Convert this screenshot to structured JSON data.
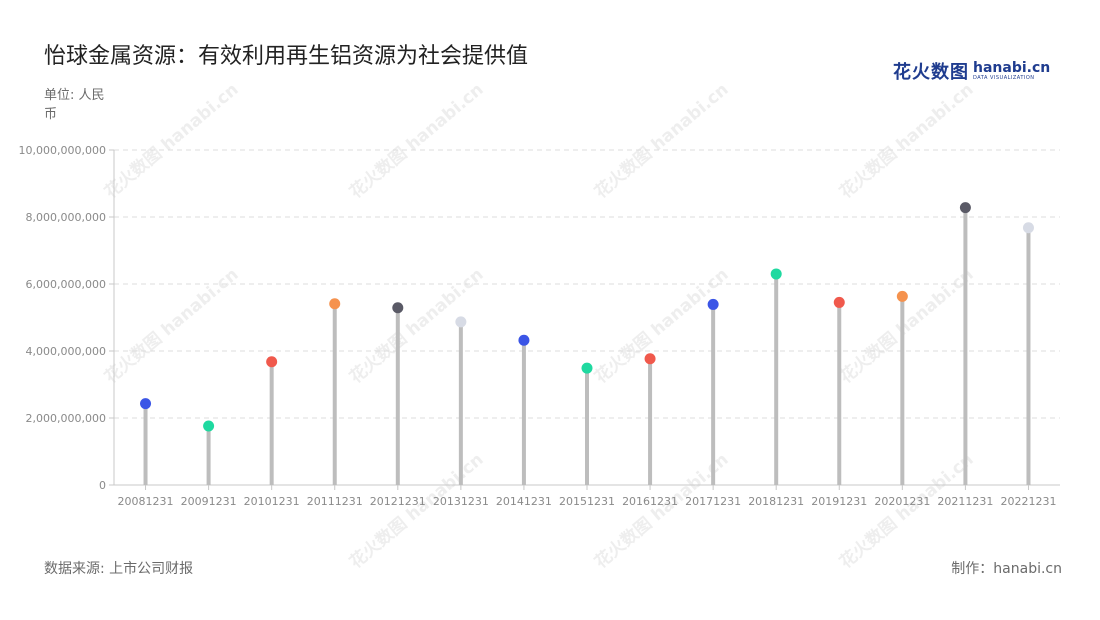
{
  "header": {
    "title": "怡球金属资源：有效利用再生铝资源为社会提供值",
    "unit": "单位: 人民币"
  },
  "logo": {
    "cn": "花火数图",
    "en": "hanabi.cn",
    "sub": "DATA VISUALIZATION"
  },
  "watermark": "花火数图 hanabi.cn",
  "footer": {
    "source": "数据来源: 上市公司财报",
    "credit": "制作：hanabi.cn"
  },
  "chart_data": {
    "type": "lollipop",
    "categories": [
      "20081231",
      "20091231",
      "20101231",
      "20111231",
      "20121231",
      "20131231",
      "20141231",
      "20151231",
      "20161231",
      "20171231",
      "20181231",
      "20191231",
      "20201231",
      "20211231",
      "20221231"
    ],
    "values": [
      2430000000,
      1760000000,
      3680000000,
      5410000000,
      5290000000,
      4870000000,
      4320000000,
      3490000000,
      3770000000,
      5390000000,
      6300000000,
      5450000000,
      5630000000,
      8280000000,
      7680000000
    ],
    "point_colors": [
      "#3b55e6",
      "#1fd9a0",
      "#f0594c",
      "#f5924e",
      "#5a5a66",
      "#d7dbe5",
      "#3b55e6",
      "#1fd9a0",
      "#f0594c",
      "#3b55e6",
      "#1fd9a0",
      "#f0594c",
      "#f5924e",
      "#5a5a66",
      "#d7dbe5"
    ],
    "stem_color": "#bdbdbd",
    "ylim": [
      0,
      10000000000
    ],
    "yticks": [
      0,
      2000000000,
      4000000000,
      6000000000,
      8000000000,
      10000000000
    ],
    "ytick_labels": [
      "0",
      "2,000,000,000",
      "4,000,000,000",
      "6,000,000,000",
      "8,000,000,000",
      "10,000,000,000"
    ],
    "grid": "horizontal dashed",
    "legend": "none"
  }
}
